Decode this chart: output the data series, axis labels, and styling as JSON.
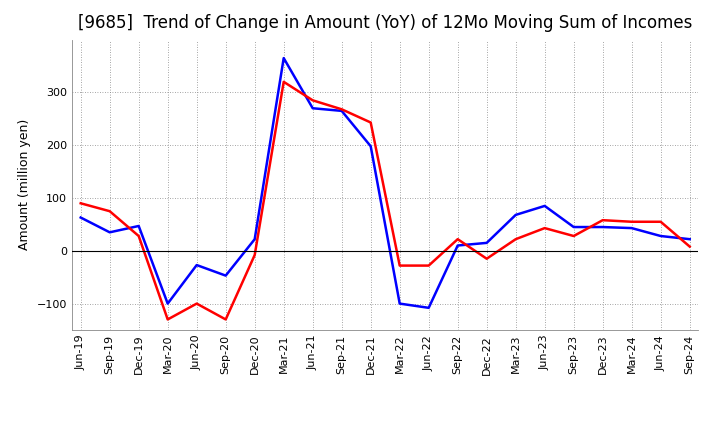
{
  "title": "[9685]  Trend of Change in Amount (YoY) of 12Mo Moving Sum of Incomes",
  "ylabel": "Amount (million yen)",
  "xlabel": "",
  "x_labels": [
    "Jun-19",
    "Sep-19",
    "Dec-19",
    "Mar-20",
    "Jun-20",
    "Sep-20",
    "Dec-20",
    "Mar-21",
    "Jun-21",
    "Sep-21",
    "Dec-21",
    "Mar-22",
    "Jun-22",
    "Sep-22",
    "Dec-22",
    "Mar-23",
    "Jun-23",
    "Sep-23",
    "Dec-23",
    "Mar-24",
    "Jun-24",
    "Sep-24"
  ],
  "ordinary_income": [
    63,
    35,
    47,
    -100,
    -27,
    -47,
    22,
    365,
    270,
    265,
    198,
    -100,
    -108,
    10,
    15,
    68,
    85,
    45,
    45,
    43,
    28,
    22
  ],
  "net_income": [
    90,
    75,
    28,
    -130,
    -100,
    -130,
    -8,
    320,
    285,
    268,
    243,
    -28,
    -28,
    22,
    -15,
    22,
    43,
    28,
    58,
    55,
    55,
    8
  ],
  "ordinary_color": "#0000ff",
  "net_color": "#ff0000",
  "background_color": "#ffffff",
  "grid_color": "#888888",
  "ylim": [
    -150,
    400
  ],
  "yticks": [
    -100,
    0,
    100,
    200,
    300
  ],
  "line_width": 1.8,
  "title_fontsize": 12,
  "axis_fontsize": 9,
  "tick_fontsize": 8
}
